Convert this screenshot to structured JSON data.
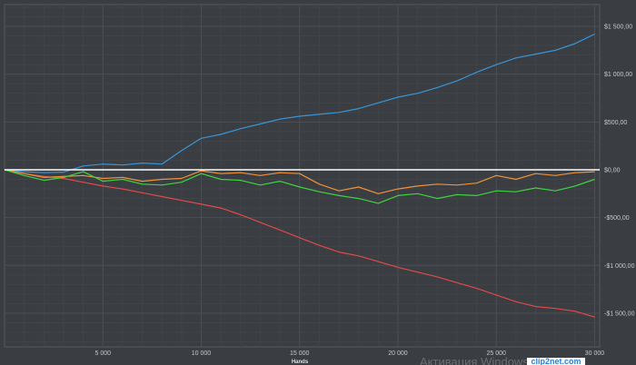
{
  "chart_data": {
    "type": "line",
    "title": "",
    "xlabel": "Hands",
    "ylabel": "",
    "xlim": [
      0,
      30300
    ],
    "ylim": [
      -1830,
      1700
    ],
    "grid": true,
    "x": [
      0,
      1000,
      2000,
      3000,
      4000,
      5000,
      6000,
      7000,
      8000,
      9000,
      10000,
      11000,
      12000,
      13000,
      14000,
      15000,
      16000,
      17000,
      18000,
      19000,
      20000,
      21000,
      22000,
      23000,
      24000,
      25000,
      26000,
      27000,
      28000,
      29000,
      30000
    ],
    "x_ticks": [
      {
        "v": 5000,
        "label": "5 000"
      },
      {
        "v": 10000,
        "label": "10 000"
      },
      {
        "v": 15000,
        "label": "15 000"
      },
      {
        "v": 20000,
        "label": "20 000"
      },
      {
        "v": 25000,
        "label": "25 000"
      },
      {
        "v": 30000,
        "label": "30 000"
      }
    ],
    "y_ticks": [
      {
        "v": 1500,
        "label": "$1 500,00"
      },
      {
        "v": 1000,
        "label": "$1 000,00"
      },
      {
        "v": 500,
        "label": "$500,00"
      },
      {
        "v": 0,
        "label": "$0,00"
      },
      {
        "v": -500,
        "label": "-$500,00"
      },
      {
        "v": -1000,
        "label": "-$1 000,00"
      },
      {
        "v": -1500,
        "label": "-$1 500,00"
      }
    ],
    "series": [
      {
        "name": "blue",
        "color": "#3a95d8",
        "values": [
          0,
          -20,
          -30,
          -25,
          40,
          60,
          50,
          70,
          60,
          200,
          330,
          370,
          430,
          480,
          530,
          560,
          580,
          600,
          640,
          700,
          760,
          800,
          860,
          930,
          1020,
          1100,
          1170,
          1210,
          1250,
          1320,
          1420
        ]
      },
      {
        "name": "red",
        "color": "#e04a4a",
        "values": [
          0,
          -40,
          -70,
          -90,
          -130,
          -170,
          -200,
          -240,
          -280,
          -320,
          -360,
          -400,
          -470,
          -550,
          -630,
          -710,
          -790,
          -860,
          -900,
          -960,
          -1020,
          -1070,
          -1120,
          -1180,
          -1240,
          -1310,
          -1380,
          -1430,
          -1450,
          -1480,
          -1540
        ]
      },
      {
        "name": "orange",
        "color": "#f0923a",
        "values": [
          0,
          -40,
          -80,
          -70,
          -60,
          -90,
          -80,
          -120,
          -100,
          -90,
          -10,
          -40,
          -30,
          -60,
          -30,
          -40,
          -150,
          -220,
          -180,
          -250,
          -200,
          -170,
          -150,
          -160,
          -140,
          -60,
          -100,
          -40,
          -60,
          -30,
          -20
        ]
      },
      {
        "name": "green",
        "color": "#3fd43f",
        "values": [
          0,
          -60,
          -110,
          -80,
          -20,
          -120,
          -100,
          -150,
          -160,
          -130,
          -40,
          -100,
          -110,
          -160,
          -120,
          -180,
          -230,
          -270,
          -300,
          -350,
          -270,
          -250,
          -300,
          -260,
          -270,
          -220,
          -230,
          -190,
          -220,
          -170,
          -100
        ]
      }
    ],
    "zero_line_color": "#ffffff"
  },
  "watermark": {
    "windows": "Активация Windows",
    "badge": "clip2net.com"
  }
}
